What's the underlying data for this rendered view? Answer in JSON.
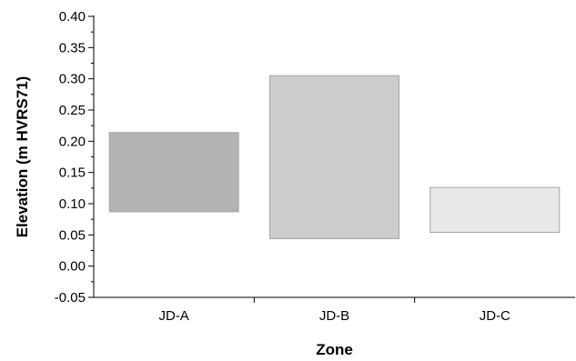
{
  "chart_data": {
    "type": "bar",
    "subtype": "floating-range",
    "xlabel": "Zone",
    "ylabel": "Elevation (m HVRS71)",
    "ylim": [
      -0.05,
      0.4
    ],
    "yticks": [
      "-0.05",
      "0.00",
      "0.05",
      "0.10",
      "0.15",
      "0.20",
      "0.25",
      "0.30",
      "0.35",
      "0.40"
    ],
    "ytick_values": [
      -0.05,
      0.0,
      0.05,
      0.1,
      0.15,
      0.2,
      0.25,
      0.3,
      0.35,
      0.4
    ],
    "minor_ticks": true,
    "categories": [
      "JD-A",
      "JD-B",
      "JD-C"
    ],
    "ranges": [
      {
        "category": "JD-A",
        "low": 0.087,
        "high": 0.214,
        "color": "#b3b3b3"
      },
      {
        "category": "JD-B",
        "low": 0.044,
        "high": 0.305,
        "color": "#cccccc"
      },
      {
        "category": "JD-C",
        "low": 0.054,
        "high": 0.126,
        "color": "#e8e8e8"
      }
    ],
    "grid": false,
    "legend": "none"
  }
}
